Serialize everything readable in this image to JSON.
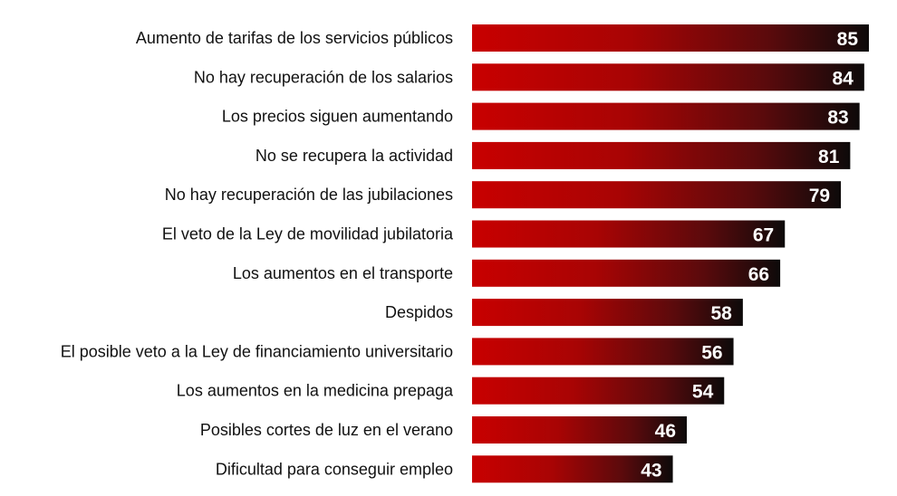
{
  "chart_data": {
    "type": "bar",
    "orientation": "horizontal",
    "categories": [
      "Aumento de tarifas de los servicios públicos",
      "No hay recuperación de los salarios",
      "Los precios siguen aumentando",
      "No se recupera la actividad",
      "No hay recuperación de las jubilaciones",
      "El veto de la Ley de movilidad jubilatoria",
      "Los aumentos en el transporte",
      "Despidos",
      "El posible veto a la Ley de financiamiento universitario",
      "Los aumentos en la medicina prepaga",
      "Posibles cortes de luz en el verano",
      "Dificultad para conseguir empleo"
    ],
    "values": [
      85,
      84,
      83,
      81,
      79,
      67,
      66,
      58,
      56,
      54,
      46,
      43
    ],
    "xlim": [
      0,
      85
    ],
    "grid": false,
    "data_labels": true,
    "colors": {
      "gradient_start": "#c80000",
      "gradient_mid": "#9a0a0a",
      "gradient_end": "#0d0a0a",
      "label": "#ffffff",
      "text": "#111111"
    }
  }
}
